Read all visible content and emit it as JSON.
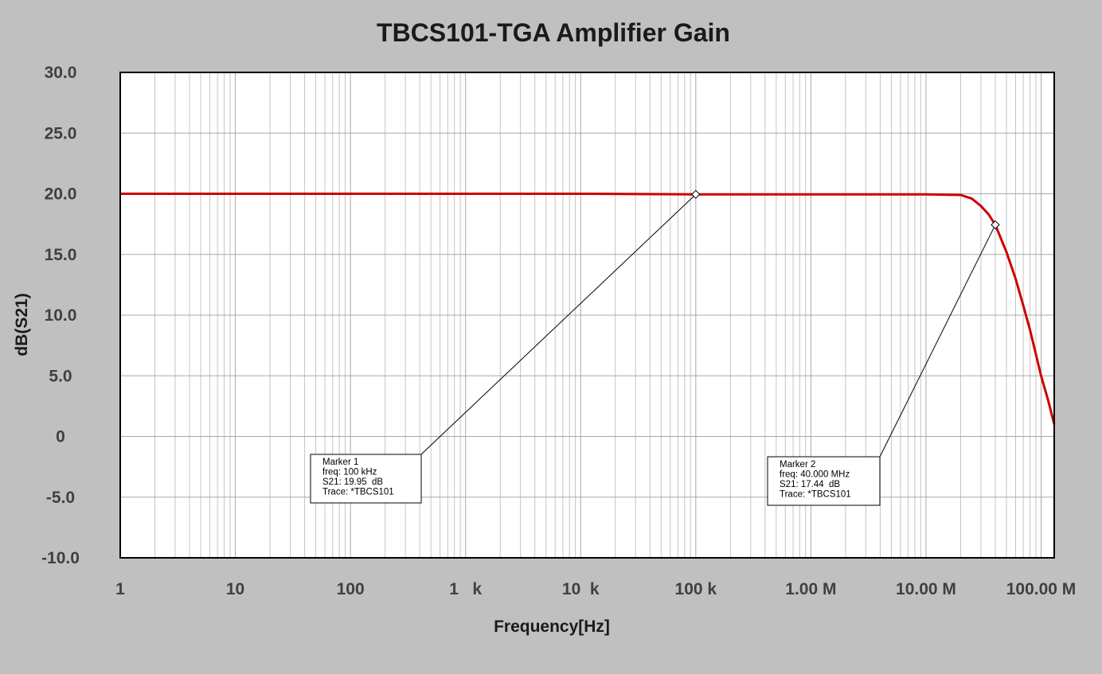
{
  "chart_data": {
    "type": "line",
    "title": "TBCS101-TGA Amplifier Gain",
    "xlabel": "Frequency[Hz]",
    "ylabel": "dB(S21)",
    "x_scale": "log",
    "xlim": [
      1,
      130000000
    ],
    "ylim": [
      -10,
      30
    ],
    "grid": true,
    "x_tick_values": [
      1,
      10,
      100,
      1000,
      10000,
      100000,
      1000000,
      10000000,
      100000000
    ],
    "x_tick_labels": [
      "1",
      "10",
      "100",
      "1   k",
      "10  k",
      "100 k",
      "1.00 M",
      "10.00 M",
      "100.00 M"
    ],
    "y_tick_values": [
      30,
      25,
      20,
      15,
      10,
      5,
      0,
      -5,
      -10
    ],
    "y_tick_labels": [
      "30.0",
      "25.0",
      "20.0",
      "15.0",
      "10.0",
      "5.0",
      "0",
      "-5.0",
      "-10.0"
    ],
    "series": [
      {
        "color": "#cc0000",
        "x": [
          1,
          10,
          100,
          1000,
          10000,
          100000,
          1000000,
          10000000,
          20000000,
          25000000,
          30000000,
          35000000,
          40000000,
          50000000,
          60000000,
          70000000,
          80000000,
          90000000,
          100000000,
          115000000,
          130000000
        ],
        "y": [
          20,
          20,
          20,
          20,
          20,
          19.95,
          19.95,
          19.95,
          19.9,
          19.6,
          19.0,
          18.3,
          17.44,
          15.2,
          13.0,
          10.8,
          8.8,
          6.8,
          5.0,
          3.0,
          1.0
        ]
      }
    ],
    "markers": [
      {
        "x": 100000,
        "y": 19.95,
        "lines": [
          "Marker 1",
          "freq: 100 kHz",
          "S21: 19.95  dB",
          "Trace: *TBCS101"
        ]
      },
      {
        "x": 40000000,
        "y": 17.44,
        "lines": [
          "Marker 2",
          "freq: 40.000 MHz",
          "S21: 17.44  dB",
          "Trace: *TBCS101"
        ]
      }
    ]
  }
}
